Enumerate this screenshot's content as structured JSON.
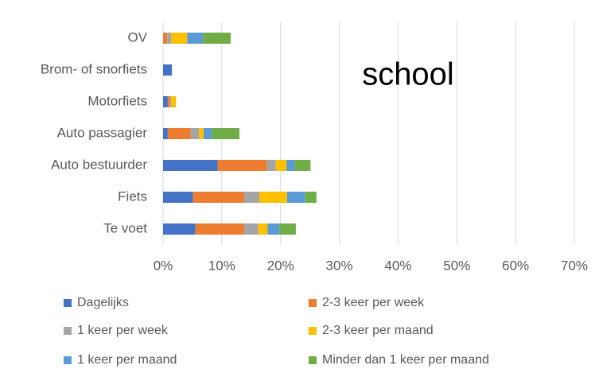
{
  "chart_data": {
    "type": "stacked_barh",
    "annotation": "school",
    "categories": [
      "OV",
      "Brom- of snorfiets",
      "Motorfiets",
      "Auto passagier",
      "Auto bestuurder",
      "Fiets",
      "Te voet"
    ],
    "series": [
      {
        "name": "Dagelijks",
        "color": "#4472c4",
        "values": [
          0,
          1.5,
          0.8,
          0.8,
          9.3,
          5.1,
          5.5
        ]
      },
      {
        "name": "2-3 keer per week",
        "color": "#ed7d31",
        "values": [
          0.7,
          0,
          0.4,
          3.9,
          8.4,
          8.7,
          8.3
        ]
      },
      {
        "name": "1 keer per week",
        "color": "#a5a5a5",
        "values": [
          0.7,
          0,
          0.2,
          1.4,
          1.5,
          2.6,
          2.4
        ]
      },
      {
        "name": "2-3 keer per maand",
        "color": "#ffc000",
        "values": [
          2.7,
          0,
          0.8,
          0.8,
          1.8,
          4.7,
          1.6
        ]
      },
      {
        "name": "1 keer per maand",
        "color": "#5b9bd5",
        "values": [
          2.7,
          0,
          0,
          1.4,
          1.4,
          3.1,
          2.0
        ]
      },
      {
        "name": "Minder dan 1 keer per maand",
        "color": "#70ad47",
        "values": [
          4.7,
          0,
          0,
          4.7,
          2.7,
          1.9,
          2.8
        ]
      }
    ],
    "xlim": [
      0,
      70
    ],
    "xticks": [
      {
        "value": 0,
        "label": "0%"
      },
      {
        "value": 10,
        "label": "10%"
      },
      {
        "value": 20,
        "label": "20%"
      },
      {
        "value": 30,
        "label": "30%"
      },
      {
        "value": 40,
        "label": "40%"
      },
      {
        "value": 50,
        "label": "50%"
      },
      {
        "value": 60,
        "label": "60%"
      },
      {
        "value": 70,
        "label": "70%"
      }
    ],
    "grid": true
  }
}
